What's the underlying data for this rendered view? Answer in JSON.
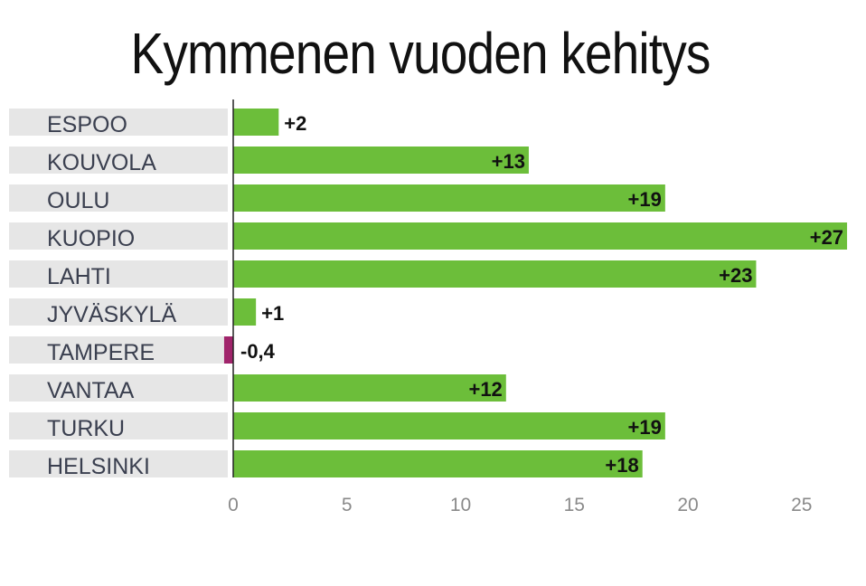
{
  "chart_data": {
    "type": "bar",
    "orientation": "horizontal",
    "title": "Kymmenen vuoden kehitys",
    "categories": [
      "ESPOO",
      "KOUVOLA",
      "OULU",
      "KUOPIO",
      "LAHTI",
      "JYVÄSKYLÄ",
      "TAMPERE",
      "VANTAA",
      "TURKU",
      "HELSINKI"
    ],
    "values": [
      2,
      13,
      19,
      27,
      23,
      1,
      -0.4,
      12,
      19,
      18
    ],
    "value_labels": [
      "+2",
      "+13",
      "+19",
      "+27",
      "+23",
      "+1",
      "-0,4",
      "+12",
      "+19",
      "+18"
    ],
    "xlim": [
      -0.4,
      27
    ],
    "xticks": [
      0,
      5,
      10,
      15,
      20,
      25
    ],
    "grid": false,
    "colors": {
      "positive": "#6cbe3a",
      "negative": "#a0246b",
      "label_band": "#e6e6e6",
      "axis": "#222222"
    }
  }
}
